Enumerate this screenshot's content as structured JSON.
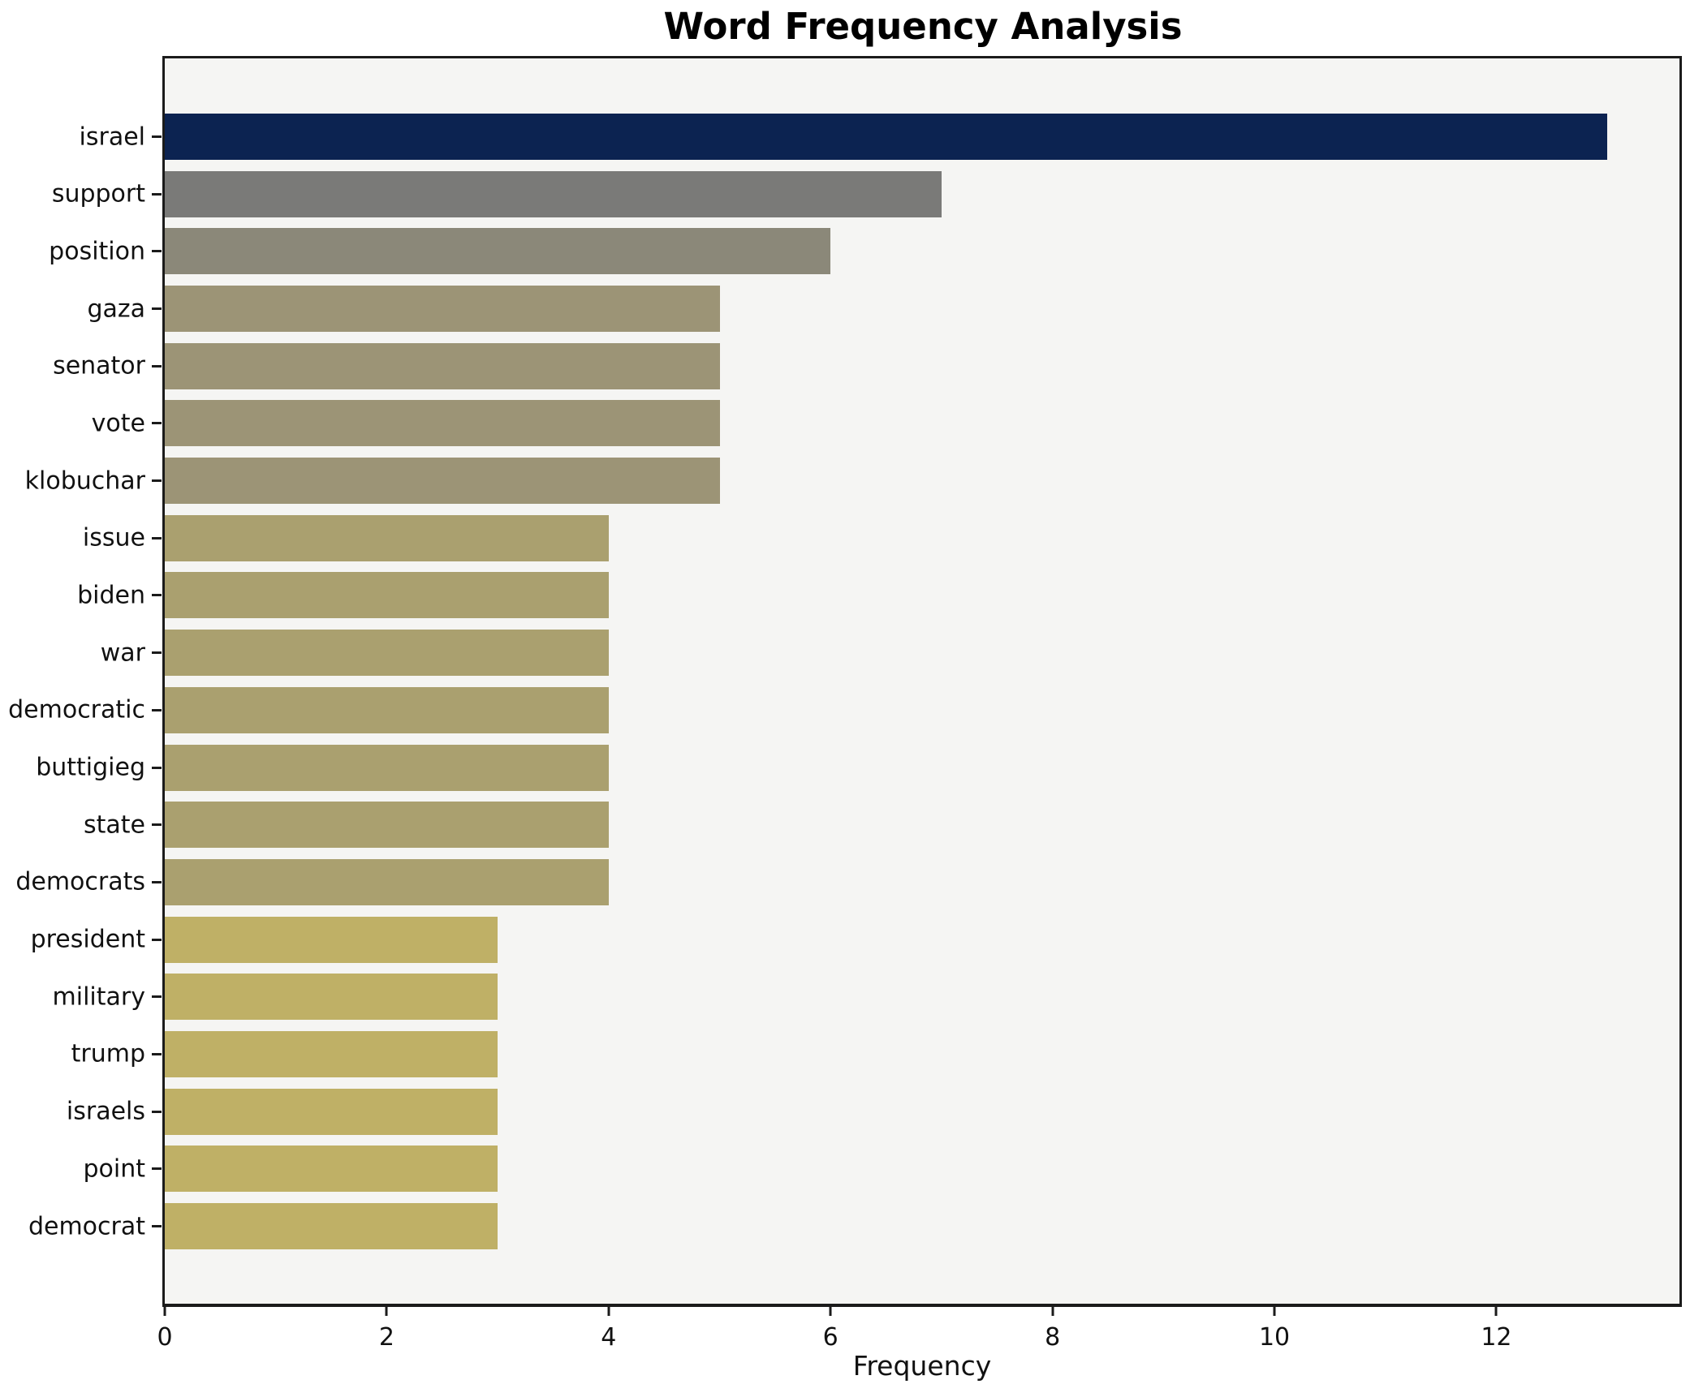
{
  "chart_data": {
    "type": "bar",
    "orientation": "horizontal",
    "title": "Word Frequency Analysis",
    "xlabel": "Frequency",
    "ylabel": "",
    "categories": [
      "israel",
      "support",
      "position",
      "gaza",
      "senator",
      "vote",
      "klobuchar",
      "issue",
      "biden",
      "war",
      "democratic",
      "buttigieg",
      "state",
      "democrats",
      "president",
      "military",
      "trump",
      "israels",
      "point",
      "democrat"
    ],
    "values": [
      13,
      7,
      6,
      5,
      5,
      5,
      5,
      4,
      4,
      4,
      4,
      4,
      4,
      4,
      3,
      3,
      3,
      3,
      3,
      3
    ],
    "bar_colors": [
      "#0c2351",
      "#7a7a78",
      "#8b8879",
      "#9c9476",
      "#9c9476",
      "#9c9476",
      "#9c9476",
      "#aaa06f",
      "#aaa06f",
      "#aaa06f",
      "#aaa06f",
      "#aaa06f",
      "#aaa06f",
      "#aaa06f",
      "#bfb066",
      "#bfb066",
      "#bfb066",
      "#bfb066",
      "#bfb066",
      "#bfb066"
    ],
    "xlim": [
      0,
      13.65
    ],
    "x_ticks": [
      0,
      2,
      4,
      6,
      8,
      10,
      12
    ],
    "grid": false,
    "legend_position": "none",
    "plot_bg_color": "#f5f5f3",
    "figure_bg_color": "#ffffff",
    "axis_color": "#1b1b1b"
  }
}
